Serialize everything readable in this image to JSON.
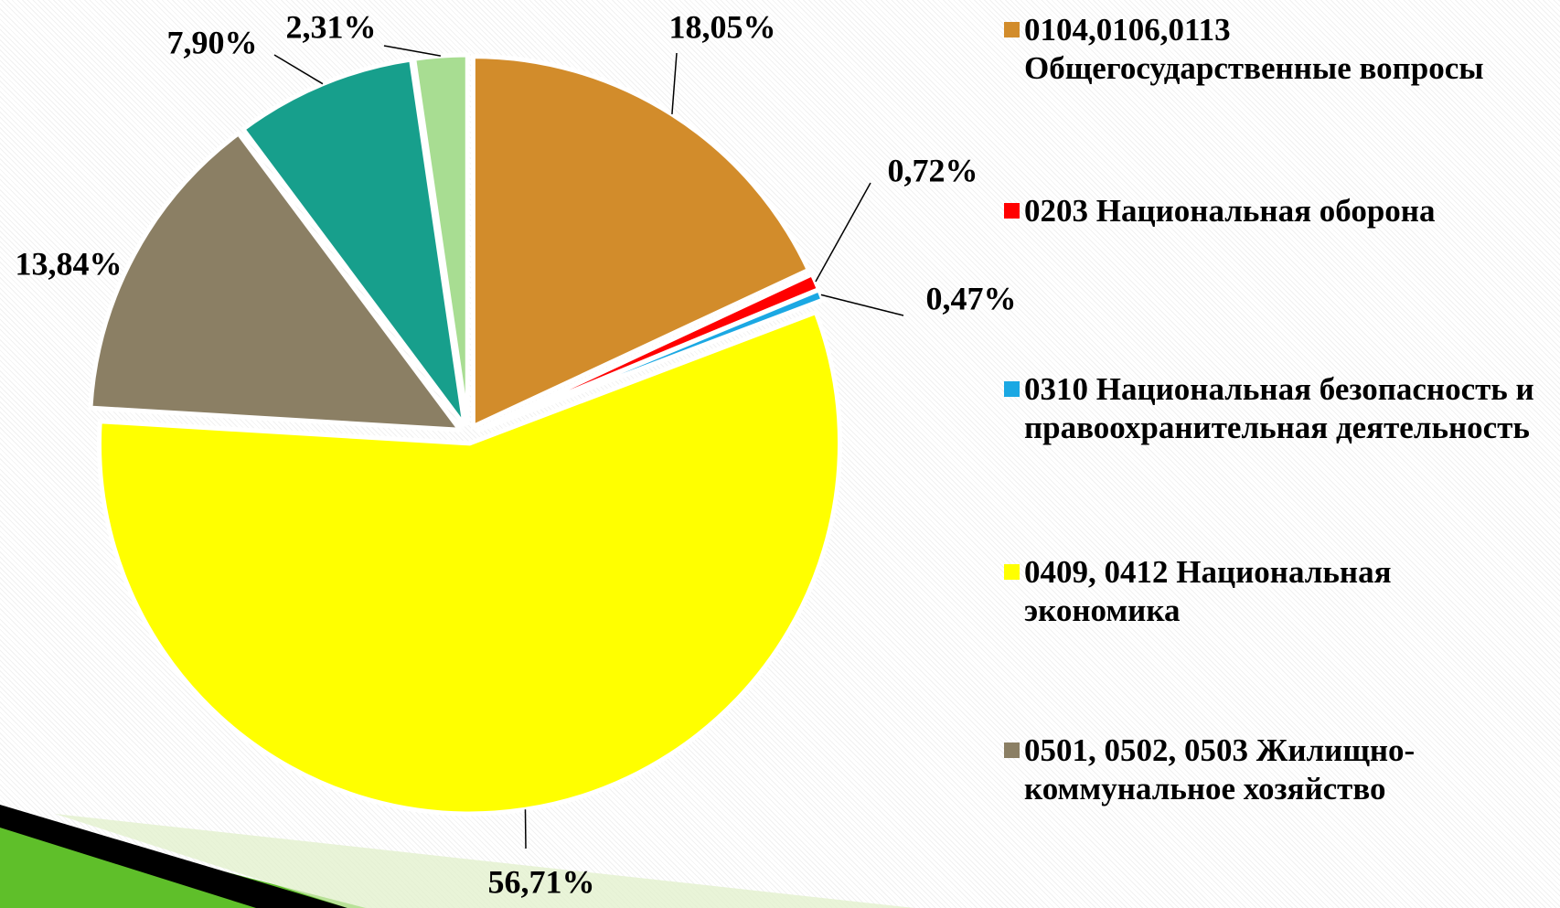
{
  "chart_data": {
    "type": "pie",
    "categories": [
      "0104,0106,0113 Общегосударственные вопросы",
      "0203 Национальная оборона",
      "0310 Национальная безопасность и правоохранительная деятельность",
      "0409, 0412 Национальная экономика",
      "0501, 0502, 0503 Жилищно-коммунальное хозяйство",
      null,
      null
    ],
    "values": [
      18.05,
      0.72,
      0.47,
      56.71,
      13.84,
      7.9,
      2.31
    ],
    "value_labels": [
      "18,05%",
      "0,72%",
      "0,47%",
      "56,71%",
      "13,84%",
      "7,90%",
      "2,31%"
    ],
    "colors": [
      "#D28C2B",
      "#FF0000",
      "#1BA8E3",
      "#FFFF00",
      "#8B7F64",
      "#179F8C",
      "#A8DD92"
    ],
    "legend": "right"
  }
}
